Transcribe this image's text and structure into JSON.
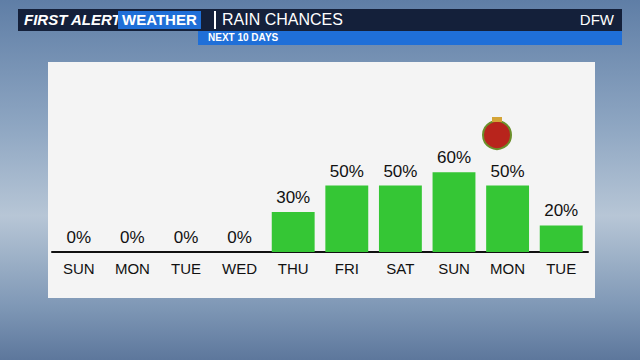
{
  "chart_data": {
    "type": "bar",
    "title": "RAIN CHANCES",
    "subtitle": "NEXT 10 DAYS",
    "annotations": {
      "brand": "FIRST ALERT",
      "brand_tag": "WEATHER",
      "location": "DFW"
    },
    "categories": [
      "SUN",
      "MON",
      "TUE",
      "WED",
      "THU",
      "FRI",
      "SAT",
      "SUN",
      "MON",
      "TUE"
    ],
    "values": [
      0,
      0,
      0,
      0,
      30,
      50,
      50,
      60,
      50,
      20
    ],
    "value_labels": [
      "0%",
      "0%",
      "0%",
      "0%",
      "30%",
      "50%",
      "50%",
      "60%",
      "50%",
      "20%"
    ],
    "color": "#35c635",
    "ylim": [
      0,
      100
    ],
    "data_labels": true,
    "tick_labels": "x",
    "grid": false
  }
}
